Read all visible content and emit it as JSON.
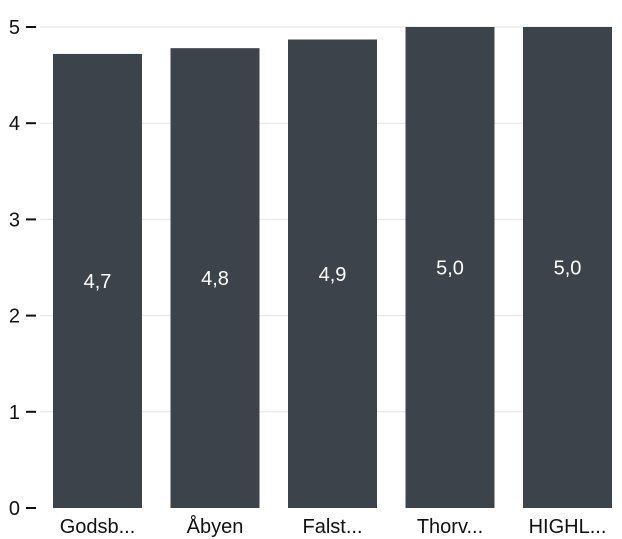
{
  "chart_data": {
    "type": "bar",
    "categories": [
      "Godsb...",
      "Åbyen",
      "Falst...",
      "Thorv...",
      "HIGHL..."
    ],
    "values": [
      4.72,
      4.78,
      4.87,
      5.0,
      5.0
    ],
    "data_labels": [
      "4,7",
      "4,8",
      "4,9",
      "5,0",
      "5,0"
    ],
    "title": "",
    "xlabel": "",
    "ylabel": "",
    "ylim": [
      0,
      5
    ],
    "y_ticks": [
      0,
      1,
      2,
      3,
      4,
      5
    ],
    "y_tick_labels": [
      "0",
      "1",
      "2",
      "3",
      "4",
      "5"
    ],
    "grid": true,
    "legend": "none",
    "colors": {
      "bar": "#3d434b",
      "bar_label": "#ffffff",
      "grid": "#e3e3e3",
      "axis_text": "#111111",
      "tick_mark": "#111111"
    }
  }
}
